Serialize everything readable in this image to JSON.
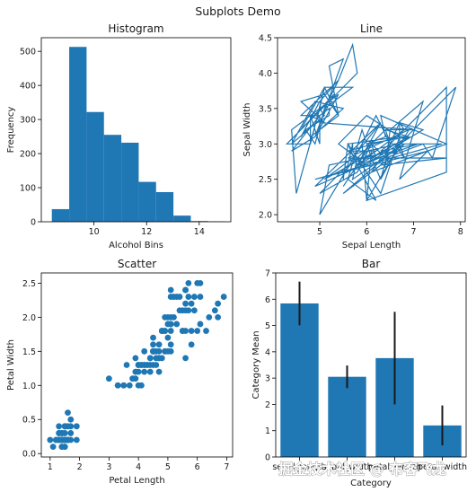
{
  "suptitle": "Subplots Demo",
  "watermark": "掘金技术社区 @ 布客飞龙",
  "colors": {
    "bar": "#1f77b4",
    "line": "#1f77b4",
    "errorbar": "#1a1a1a",
    "axis": "#000000"
  },
  "chart_data": [
    {
      "type": "bar",
      "subtype": "histogram",
      "title": "Histogram",
      "xlabel": "Alcohol Bins",
      "ylabel": "Frequency",
      "xlim": [
        8.0,
        15.2
      ],
      "ylim": [
        0,
        540
      ],
      "xticks": [
        10,
        12,
        14
      ],
      "yticks": [
        0,
        100,
        200,
        300,
        400,
        500
      ],
      "bin_edges": [
        8.4,
        9.06,
        9.72,
        10.38,
        11.04,
        11.7,
        12.36,
        13.02,
        13.68,
        14.34,
        15.0
      ],
      "values": [
        37,
        513,
        322,
        255,
        232,
        117,
        87,
        18,
        2,
        1
      ]
    },
    {
      "type": "line",
      "title": "Line",
      "xlabel": "Sepal Length",
      "ylabel": "Sepal Width",
      "xlim": [
        4.1,
        8.1
      ],
      "ylim": [
        1.9,
        4.5
      ],
      "xticks": [
        5,
        6,
        7,
        8
      ],
      "yticks": [
        2.0,
        2.5,
        3.0,
        3.5,
        4.0,
        4.5
      ],
      "x": [
        5.1,
        4.9,
        4.7,
        4.6,
        5.0,
        5.4,
        4.6,
        5.0,
        4.4,
        4.9,
        5.4,
        4.8,
        4.8,
        4.3,
        5.8,
        5.7,
        5.4,
        5.1,
        5.7,
        5.1,
        5.4,
        5.1,
        4.6,
        5.1,
        4.8,
        5.0,
        5.0,
        5.2,
        5.2,
        4.7,
        4.8,
        5.4,
        5.2,
        5.5,
        4.9,
        5.0,
        5.5,
        4.9,
        4.4,
        5.1,
        5.0,
        4.5,
        4.4,
        5.0,
        5.1,
        4.8,
        5.1,
        4.6,
        5.3,
        5.0,
        7.0,
        6.4,
        6.9,
        5.5,
        6.5,
        5.7,
        6.3,
        4.9,
        6.6,
        5.2,
        5.0,
        5.9,
        6.0,
        6.1,
        5.6,
        6.7,
        5.6,
        5.8,
        6.2,
        5.6,
        5.9,
        6.1,
        6.3,
        6.1,
        6.4,
        6.6,
        6.8,
        6.7,
        6.0,
        5.7,
        5.5,
        5.5,
        5.8,
        6.0,
        5.4,
        6.0,
        6.7,
        6.3,
        5.6,
        5.5,
        5.5,
        6.1,
        5.8,
        5.0,
        5.6,
        5.7,
        5.7,
        6.2,
        5.1,
        5.7,
        6.3,
        5.8,
        7.1,
        6.3,
        6.5,
        7.6,
        4.9,
        7.3,
        6.7,
        7.2,
        6.5,
        6.4,
        6.8,
        5.7,
        5.8,
        6.4,
        6.5,
        7.7,
        7.7,
        6.0,
        6.9,
        5.6,
        7.7,
        6.3,
        6.7,
        7.2,
        6.2,
        6.1,
        6.4,
        7.2,
        7.4,
        7.9,
        6.4,
        6.3,
        6.1,
        7.7,
        6.3,
        6.4,
        6.0,
        6.9,
        6.7,
        6.9,
        5.8,
        6.8,
        6.7,
        6.7,
        6.3,
        6.5,
        6.2,
        5.9
      ],
      "y": [
        3.5,
        3.0,
        3.2,
        3.1,
        3.6,
        3.9,
        3.4,
        3.4,
        2.9,
        3.1,
        3.7,
        3.4,
        3.0,
        3.0,
        4.0,
        4.4,
        3.9,
        3.5,
        3.8,
        3.8,
        3.4,
        3.7,
        3.6,
        3.3,
        3.4,
        3.0,
        3.4,
        3.5,
        3.4,
        3.2,
        3.1,
        3.4,
        4.1,
        4.2,
        3.1,
        3.2,
        3.5,
        3.6,
        3.0,
        3.4,
        3.5,
        2.3,
        3.2,
        3.5,
        3.8,
        3.0,
        3.8,
        3.2,
        3.7,
        3.3,
        3.2,
        3.2,
        3.1,
        2.3,
        2.8,
        2.8,
        3.3,
        2.4,
        2.9,
        2.7,
        2.0,
        3.0,
        2.2,
        2.9,
        2.9,
        3.1,
        3.0,
        2.7,
        2.2,
        2.5,
        3.2,
        2.8,
        2.5,
        2.8,
        2.9,
        3.0,
        2.8,
        3.0,
        2.9,
        2.6,
        2.4,
        2.4,
        2.7,
        2.7,
        3.0,
        3.4,
        3.1,
        2.3,
        3.0,
        2.5,
        2.6,
        3.0,
        2.6,
        2.3,
        2.7,
        3.0,
        2.9,
        2.9,
        2.5,
        2.8,
        3.3,
        2.7,
        3.0,
        2.9,
        3.0,
        3.0,
        2.5,
        2.9,
        2.5,
        3.6,
        3.2,
        2.7,
        3.0,
        2.5,
        2.8,
        3.2,
        3.0,
        3.8,
        2.6,
        2.2,
        3.2,
        2.8,
        2.8,
        2.7,
        3.3,
        3.2,
        2.8,
        3.0,
        2.8,
        3.0,
        2.8,
        3.8,
        2.8,
        2.8,
        2.6,
        3.0,
        3.4,
        3.1,
        3.0,
        3.1,
        3.1,
        3.1,
        2.7,
        3.2,
        3.3,
        3.0,
        2.5,
        3.0,
        3.4,
        3.0
      ]
    },
    {
      "type": "scatter",
      "title": "Scatter",
      "xlabel": "Petal Length",
      "ylabel": "Petal Width",
      "xlim": [
        0.7,
        7.2
      ],
      "ylim": [
        -0.05,
        2.65
      ],
      "xticks": [
        1,
        2,
        3,
        4,
        5,
        6,
        7
      ],
      "yticks": [
        0.0,
        0.5,
        1.0,
        1.5,
        2.0,
        2.5
      ],
      "x": [
        1.4,
        1.4,
        1.3,
        1.5,
        1.4,
        1.7,
        1.4,
        1.5,
        1.4,
        1.5,
        1.5,
        1.6,
        1.4,
        1.1,
        1.2,
        1.5,
        1.3,
        1.4,
        1.7,
        1.5,
        1.7,
        1.5,
        1.0,
        1.7,
        1.9,
        1.6,
        1.6,
        1.5,
        1.4,
        1.6,
        1.6,
        1.5,
        1.5,
        1.4,
        1.5,
        1.2,
        1.3,
        1.4,
        1.3,
        1.5,
        1.3,
        1.3,
        1.3,
        1.6,
        1.9,
        1.4,
        1.6,
        1.4,
        1.5,
        1.4,
        4.7,
        4.5,
        4.9,
        4.0,
        4.6,
        4.5,
        4.7,
        3.3,
        4.6,
        3.9,
        3.5,
        4.2,
        4.0,
        4.7,
        3.6,
        4.4,
        4.5,
        4.1,
        4.5,
        3.9,
        4.8,
        4.0,
        4.9,
        4.7,
        4.3,
        4.4,
        4.8,
        5.0,
        4.5,
        3.5,
        3.8,
        3.7,
        3.9,
        5.1,
        4.5,
        4.5,
        4.7,
        4.4,
        4.1,
        4.0,
        4.4,
        4.6,
        4.0,
        3.3,
        4.2,
        4.2,
        4.2,
        4.3,
        3.0,
        4.1,
        6.0,
        5.1,
        5.9,
        5.6,
        5.8,
        6.6,
        4.5,
        6.3,
        5.8,
        6.1,
        5.1,
        5.3,
        5.5,
        5.0,
        5.1,
        5.3,
        5.5,
        6.7,
        6.9,
        5.0,
        5.7,
        4.9,
        6.7,
        4.9,
        5.7,
        6.0,
        4.8,
        4.9,
        5.6,
        5.8,
        6.1,
        6.4,
        5.6,
        5.1,
        5.6,
        6.1,
        5.6,
        5.5,
        4.8,
        5.4,
        5.6,
        5.1,
        5.1,
        5.9,
        5.7,
        5.2,
        5.0,
        5.2,
        5.4,
        5.1
      ],
      "y": [
        0.2,
        0.2,
        0.2,
        0.2,
        0.2,
        0.4,
        0.3,
        0.2,
        0.2,
        0.1,
        0.2,
        0.2,
        0.1,
        0.1,
        0.2,
        0.4,
        0.4,
        0.3,
        0.3,
        0.3,
        0.2,
        0.4,
        0.2,
        0.5,
        0.2,
        0.2,
        0.4,
        0.2,
        0.2,
        0.2,
        0.2,
        0.4,
        0.1,
        0.2,
        0.2,
        0.2,
        0.2,
        0.1,
        0.2,
        0.2,
        0.3,
        0.3,
        0.2,
        0.6,
        0.4,
        0.3,
        0.2,
        0.2,
        0.2,
        0.2,
        1.4,
        1.5,
        1.5,
        1.3,
        1.5,
        1.3,
        1.6,
        1.0,
        1.3,
        1.4,
        1.0,
        1.5,
        1.0,
        1.4,
        1.3,
        1.4,
        1.5,
        1.0,
        1.5,
        1.1,
        1.8,
        1.3,
        1.5,
        1.2,
        1.3,
        1.4,
        1.4,
        1.7,
        1.5,
        1.0,
        1.1,
        1.0,
        1.2,
        1.6,
        1.5,
        1.6,
        1.5,
        1.3,
        1.3,
        1.3,
        1.2,
        1.4,
        1.2,
        1.0,
        1.3,
        1.2,
        1.3,
        1.3,
        1.1,
        1.3,
        2.5,
        1.9,
        2.1,
        1.8,
        2.2,
        2.1,
        1.7,
        1.8,
        1.8,
        2.5,
        2.0,
        1.9,
        2.1,
        2.0,
        2.4,
        2.3,
        1.8,
        2.2,
        2.3,
        1.5,
        2.3,
        2.0,
        2.0,
        1.8,
        2.1,
        1.8,
        1.8,
        1.8,
        2.1,
        1.6,
        1.9,
        2.0,
        2.2,
        1.5,
        1.4,
        2.3,
        2.4,
        1.8,
        1.8,
        2.1,
        2.4,
        2.3,
        1.9,
        2.3,
        2.5,
        2.3,
        1.9,
        2.0,
        2.3,
        1.8
      ]
    },
    {
      "type": "bar",
      "title": "Bar",
      "xlabel": "Category",
      "ylabel": "Category Mean",
      "ylim": [
        0,
        7
      ],
      "yticks": [
        0,
        1,
        2,
        3,
        4,
        5,
        6,
        7
      ],
      "categories": [
        "sepal_length",
        "sepal_width",
        "petal_length",
        "petal_width"
      ],
      "values": [
        5.84,
        3.05,
        3.76,
        1.2
      ],
      "error": [
        0.83,
        0.43,
        1.76,
        0.76
      ]
    }
  ]
}
